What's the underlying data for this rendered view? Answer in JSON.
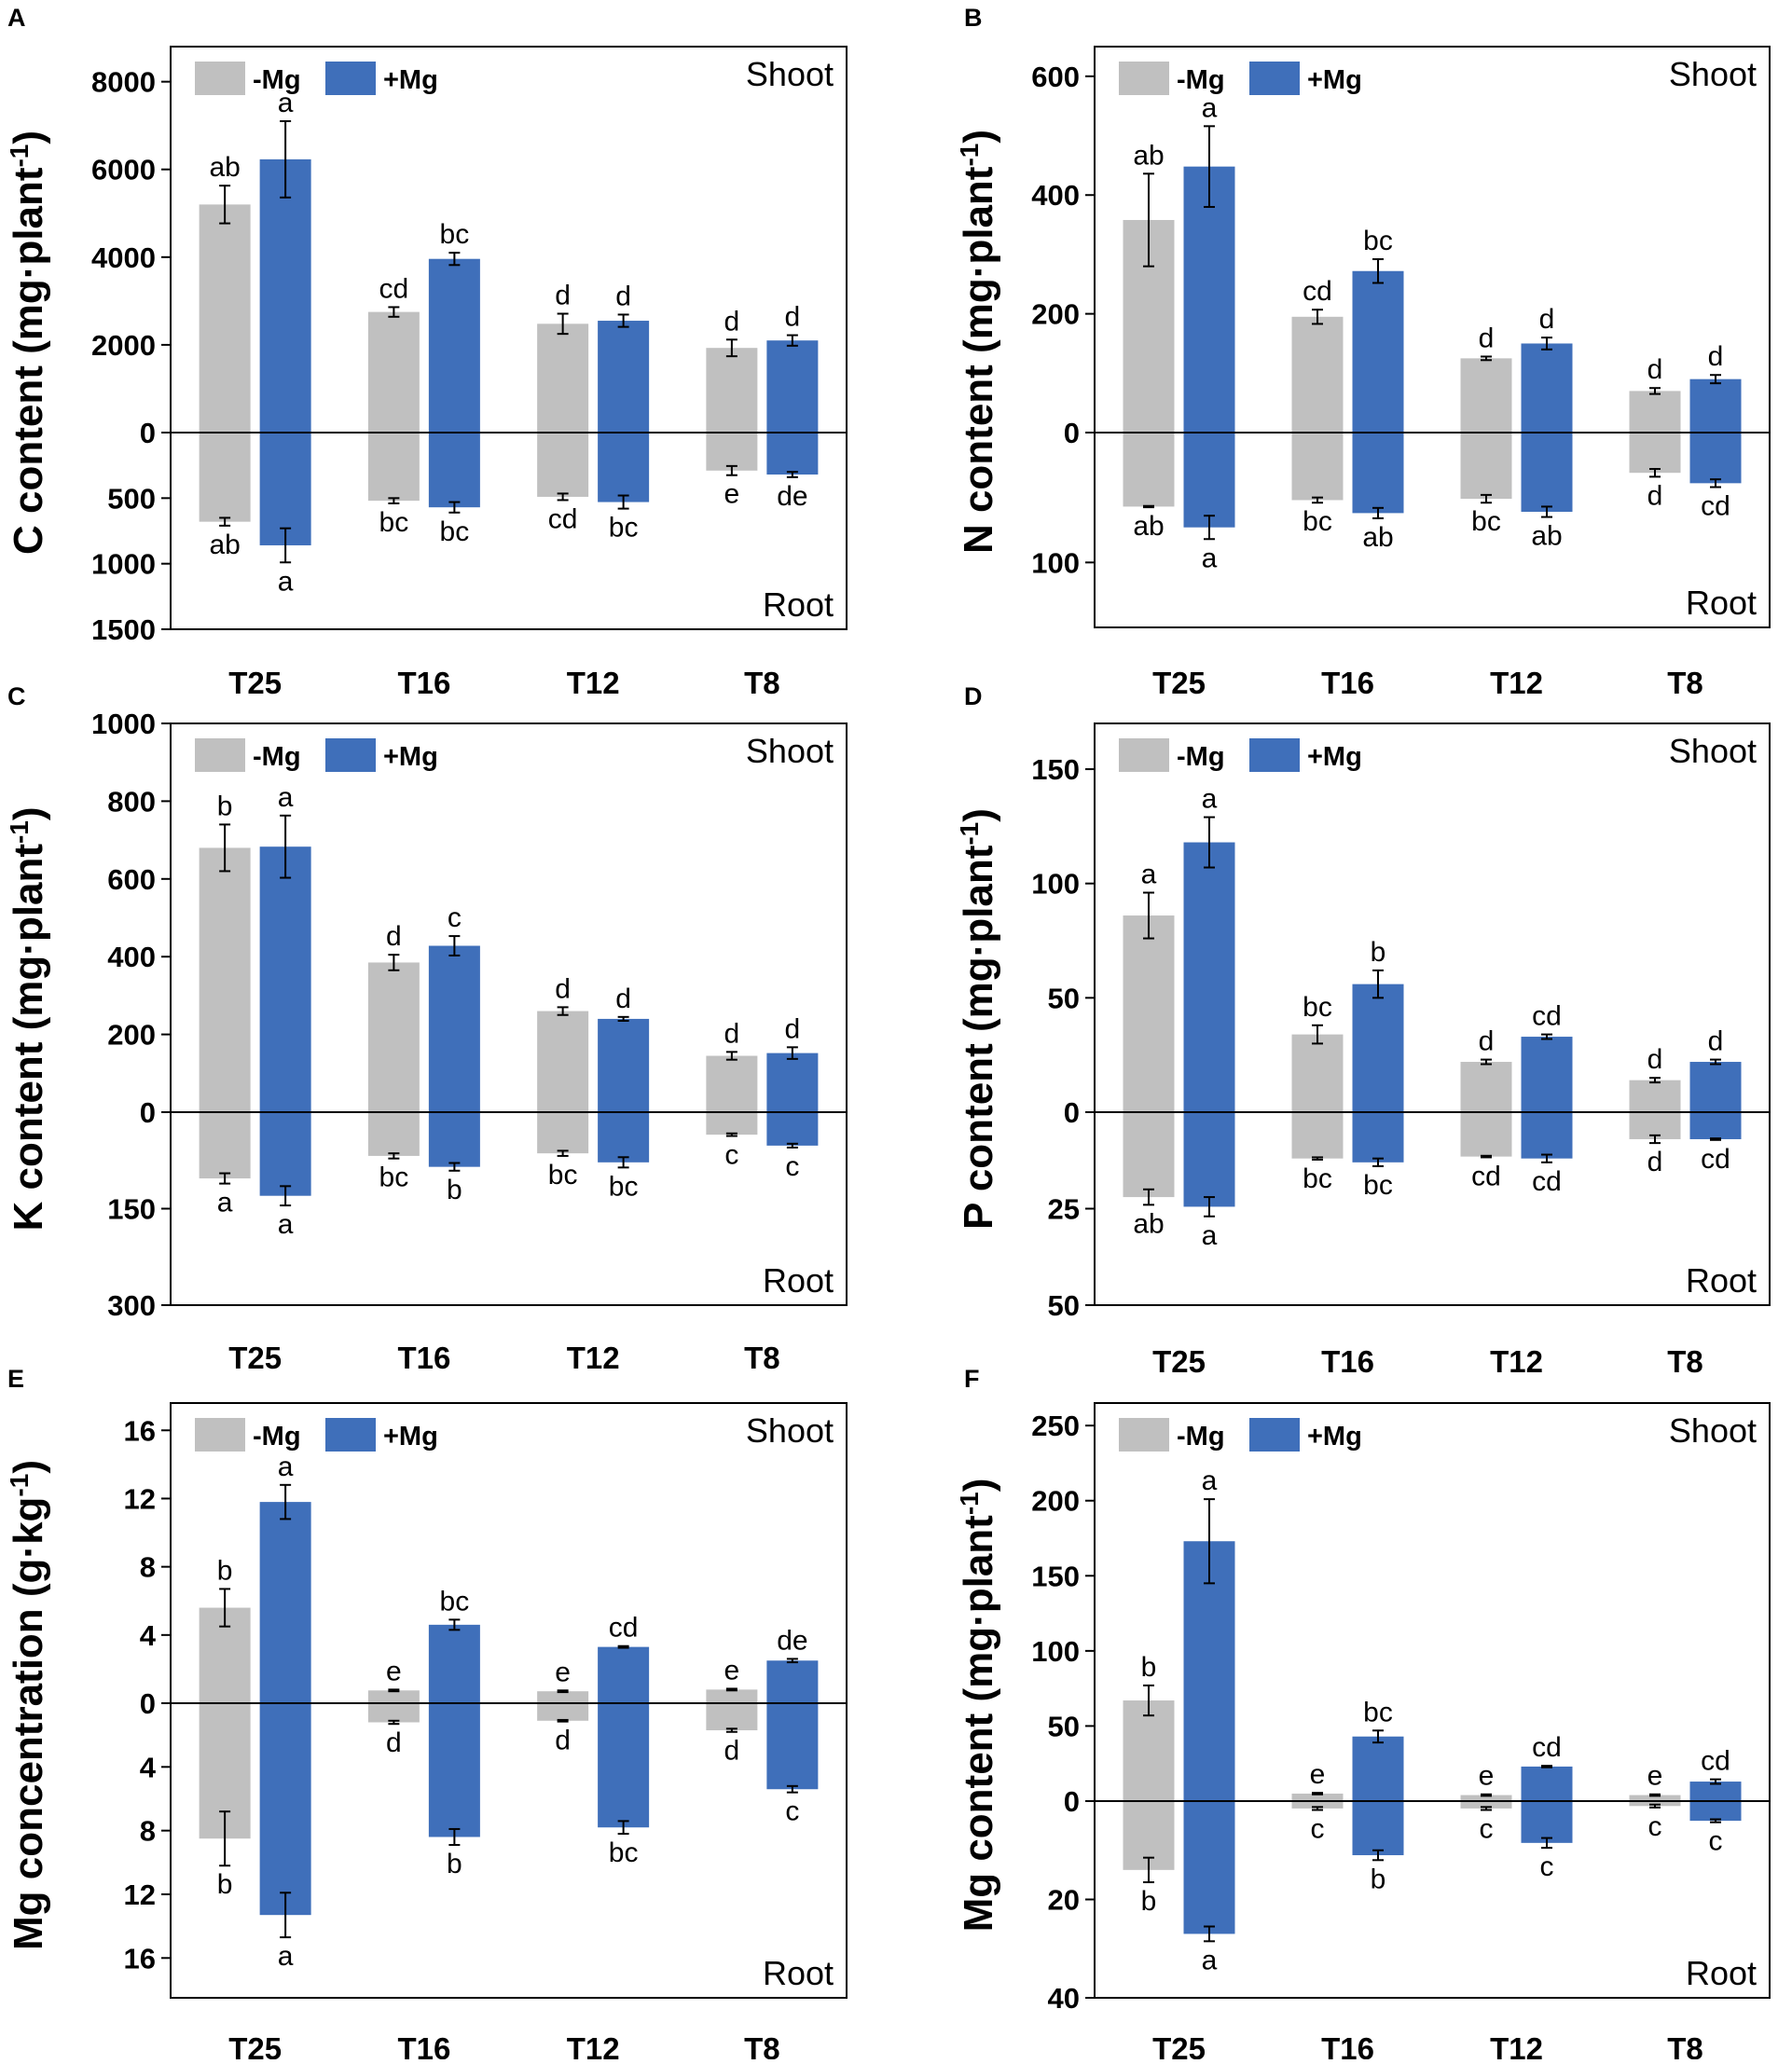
{
  "colors": {
    "minus_mg": "#c0c0c0",
    "plus_mg": "#3f6fba",
    "axis": "#000000"
  },
  "chart_data": [
    {
      "panel": "A",
      "type": "bar",
      "categories": [
        "T25",
        "T16",
        "T12",
        "T8"
      ],
      "legend": [
        "-Mg",
        "+Mg"
      ],
      "ylabel": "C content (mg·plant⁻¹)",
      "top_label": "Shoot",
      "bottom_label": "Root",
      "shoot_range": [
        0,
        8800
      ],
      "shoot_ticks": [
        0,
        2000,
        4000,
        6000,
        8000
      ],
      "root_range": [
        0,
        1500
      ],
      "root_ticks": [
        500,
        1000,
        1500
      ],
      "shoot": {
        "minus": {
          "values": [
            5200,
            2750,
            2480,
            1930
          ],
          "errors": [
            430,
            110,
            230,
            190
          ],
          "letters": [
            "ab",
            "cd",
            "d",
            "d"
          ]
        },
        "plus": {
          "values": [
            6230,
            3960,
            2550,
            2100
          ],
          "errors": [
            870,
            140,
            140,
            120
          ],
          "letters": [
            "a",
            "bc",
            "d",
            "d"
          ]
        }
      },
      "root": {
        "minus": {
          "values": [
            680,
            520,
            490,
            290
          ],
          "errors": [
            30,
            20,
            25,
            35
          ],
          "letters": [
            "ab",
            "bc",
            "cd",
            "e"
          ]
        },
        "plus": {
          "values": [
            860,
            570,
            530,
            320
          ],
          "errors": [
            130,
            40,
            50,
            20
          ],
          "letters": [
            "a",
            "bc",
            "bc",
            "de"
          ]
        }
      }
    },
    {
      "panel": "B",
      "type": "bar",
      "categories": [
        "T25",
        "T16",
        "T12",
        "T8"
      ],
      "legend": [
        "-Mg",
        "+Mg"
      ],
      "ylabel": "N content (mg·plant⁻¹)",
      "top_label": "Shoot",
      "bottom_label": "Root",
      "shoot_range": [
        0,
        650
      ],
      "shoot_ticks": [
        0,
        200,
        400,
        600
      ],
      "root_range": [
        0,
        150
      ],
      "root_ticks": [
        100
      ],
      "shoot": {
        "minus": {
          "values": [
            358,
            195,
            125,
            70
          ],
          "errors": [
            78,
            12,
            3,
            5
          ],
          "letters": [
            "ab",
            "cd",
            "d",
            "d"
          ]
        },
        "plus": {
          "values": [
            448,
            272,
            150,
            90
          ],
          "errors": [
            68,
            20,
            10,
            7
          ],
          "letters": [
            "a",
            "bc",
            "d",
            "d"
          ]
        }
      },
      "root": {
        "minus": {
          "values": [
            57,
            52,
            51,
            31
          ],
          "errors": [
            0.5,
            2,
            3,
            3
          ],
          "letters": [
            "ab",
            "bc",
            "bc",
            "d"
          ]
        },
        "plus": {
          "values": [
            73,
            62,
            61,
            39
          ],
          "errors": [
            9,
            4,
            4,
            3
          ],
          "letters": [
            "a",
            "ab",
            "ab",
            "cd"
          ]
        }
      }
    },
    {
      "panel": "C",
      "type": "bar",
      "categories": [
        "T25",
        "T16",
        "T12",
        "T8"
      ],
      "legend": [
        "-Mg",
        "+Mg"
      ],
      "ylabel": "K content (mg·plant⁻¹)",
      "top_label": "Shoot",
      "bottom_label": "Root",
      "shoot_range": [
        0,
        1000
      ],
      "shoot_ticks": [
        0,
        200,
        400,
        600,
        800,
        1000
      ],
      "root_range": [
        0,
        300
      ],
      "root_ticks": [
        150,
        300
      ],
      "shoot": {
        "minus": {
          "values": [
            680,
            385,
            260,
            145
          ],
          "errors": [
            60,
            20,
            10,
            10
          ],
          "letters": [
            "b",
            "d",
            "d",
            "d"
          ]
        },
        "plus": {
          "values": [
            683,
            428,
            240,
            152
          ],
          "errors": [
            80,
            25,
            5,
            15
          ],
          "letters": [
            "a",
            "c",
            "d",
            "d"
          ]
        }
      },
      "root": {
        "minus": {
          "values": [
            103,
            68,
            64,
            35
          ],
          "errors": [
            8,
            4,
            4,
            2
          ],
          "letters": [
            "a",
            "bc",
            "bc",
            "c"
          ]
        },
        "plus": {
          "values": [
            130,
            85,
            78,
            52
          ],
          "errors": [
            15,
            6,
            8,
            3
          ],
          "letters": [
            "a",
            "b",
            "bc",
            "c"
          ]
        }
      }
    },
    {
      "panel": "D",
      "type": "bar",
      "categories": [
        "T25",
        "T16",
        "T12",
        "T8"
      ],
      "legend": [
        "-Mg",
        "+Mg"
      ],
      "ylabel": "P content (mg·plant⁻¹)",
      "top_label": "Shoot",
      "bottom_label": "Root",
      "shoot_range": [
        0,
        170
      ],
      "shoot_ticks": [
        0,
        50,
        100,
        150
      ],
      "root_range": [
        0,
        50
      ],
      "root_ticks": [
        25,
        50
      ],
      "shoot": {
        "minus": {
          "values": [
            86,
            34,
            22,
            14
          ],
          "errors": [
            10,
            4,
            1,
            1
          ],
          "letters": [
            "a",
            "bc",
            "d",
            "d"
          ]
        },
        "plus": {
          "values": [
            118,
            56,
            33,
            22
          ],
          "errors": [
            11,
            6,
            1,
            1
          ],
          "letters": [
            "a",
            "b",
            "cd",
            "d"
          ]
        }
      },
      "root": {
        "minus": {
          "values": [
            22,
            12,
            11.5,
            7
          ],
          "errors": [
            2,
            0.3,
            0.2,
            1
          ],
          "letters": [
            "ab",
            "bc",
            "cd",
            "d"
          ]
        },
        "plus": {
          "values": [
            24.5,
            13,
            12,
            7
          ],
          "errors": [
            2.5,
            1,
            1,
            0.2
          ],
          "letters": [
            "a",
            "bc",
            "cd",
            "cd"
          ]
        }
      }
    },
    {
      "panel": "E",
      "type": "bar",
      "categories": [
        "T25",
        "T16",
        "T12",
        "T8"
      ],
      "legend": [
        "-Mg",
        "+Mg"
      ],
      "ylabel": "Mg concentration (g·kg⁻¹)",
      "top_label": "Shoot",
      "bottom_label": "Root",
      "shoot_range": [
        0,
        17.6
      ],
      "shoot_ticks": [
        0,
        4,
        8,
        12,
        16
      ],
      "root_range": [
        0,
        18.5
      ],
      "root_ticks": [
        4,
        8,
        12,
        16
      ],
      "shoot": {
        "minus": {
          "values": [
            5.6,
            0.75,
            0.7,
            0.8
          ],
          "errors": [
            1.1,
            0.05,
            0.05,
            0.05
          ],
          "letters": [
            "b",
            "e",
            "e",
            "e"
          ]
        },
        "plus": {
          "values": [
            11.8,
            4.6,
            3.3,
            2.5
          ],
          "errors": [
            1.0,
            0.3,
            0.05,
            0.1
          ],
          "letters": [
            "a",
            "bc",
            "cd",
            "de"
          ]
        }
      },
      "root": {
        "minus": {
          "values": [
            8.5,
            1.2,
            1.1,
            1.7
          ],
          "errors": [
            1.7,
            0.1,
            0.05,
            0.1
          ],
          "letters": [
            "b",
            "d",
            "d",
            "d"
          ]
        },
        "plus": {
          "values": [
            13.3,
            8.4,
            7.8,
            5.4
          ],
          "errors": [
            1.4,
            0.5,
            0.4,
            0.2
          ],
          "letters": [
            "a",
            "b",
            "bc",
            "c"
          ]
        }
      }
    },
    {
      "panel": "F",
      "type": "bar",
      "categories": [
        "T25",
        "T16",
        "T12",
        "T8"
      ],
      "legend": [
        "-Mg",
        "+Mg"
      ],
      "ylabel": "Mg content (mg·plant⁻¹)",
      "top_label": "Shoot",
      "bottom_label": "Root",
      "shoot_range": [
        0,
        265
      ],
      "shoot_ticks": [
        0,
        50,
        100,
        150,
        200,
        250
      ],
      "root_range": [
        0,
        40
      ],
      "root_ticks": [
        20,
        40
      ],
      "shoot": {
        "minus": {
          "values": [
            67,
            5,
            4,
            4
          ],
          "errors": [
            10,
            0.5,
            0.5,
            0.5
          ],
          "letters": [
            "b",
            "e",
            "e",
            "e"
          ]
        },
        "plus": {
          "values": [
            173,
            43,
            23,
            13
          ],
          "errors": [
            28,
            4,
            0.5,
            1.5
          ],
          "letters": [
            "a",
            "bc",
            "cd",
            "cd"
          ]
        }
      },
      "root": {
        "minus": {
          "values": [
            14,
            1.5,
            1.5,
            1
          ],
          "errors": [
            2.5,
            0.3,
            0.3,
            0.3
          ],
          "letters": [
            "b",
            "c",
            "c",
            "c"
          ]
        },
        "plus": {
          "values": [
            27,
            11,
            8.5,
            4
          ],
          "errors": [
            1.5,
            1,
            1,
            0.3
          ],
          "letters": [
            "a",
            "b",
            "c",
            "c"
          ]
        }
      }
    }
  ]
}
